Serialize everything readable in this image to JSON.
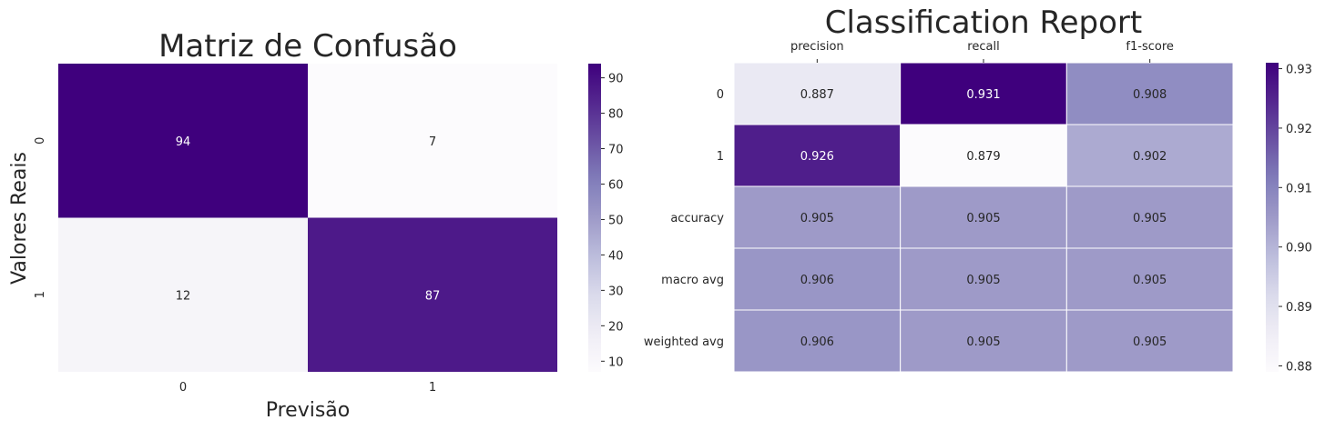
{
  "chart_data": [
    {
      "type": "heatmap",
      "title": "Matriz de Confusão",
      "xlabel": "Previsão",
      "ylabel": "Valores Reais",
      "x_categories": [
        "0",
        "1"
      ],
      "y_categories": [
        "0",
        "1"
      ],
      "values": [
        [
          94,
          7
        ],
        [
          12,
          87
        ]
      ],
      "annotations": [
        [
          "94",
          "7"
        ],
        [
          "12",
          "87"
        ]
      ],
      "colormap": "Purples",
      "vmin": 7,
      "vmax": 94,
      "colorbar_ticks": [
        10,
        20,
        30,
        40,
        50,
        60,
        70,
        80,
        90
      ],
      "gridlines": false,
      "x_ticks_position": "bottom"
    },
    {
      "type": "heatmap",
      "title": "Classification Report",
      "xlabel": "",
      "ylabel": "",
      "x_categories": [
        "precision",
        "recall",
        "f1-score"
      ],
      "y_categories": [
        "0",
        "1",
        "accuracy",
        "macro avg",
        "weighted avg"
      ],
      "values": [
        [
          0.887,
          0.931,
          0.908
        ],
        [
          0.926,
          0.879,
          0.902
        ],
        [
          0.905,
          0.905,
          0.905
        ],
        [
          0.906,
          0.905,
          0.905
        ],
        [
          0.906,
          0.905,
          0.905
        ]
      ],
      "annotations": [
        [
          "0.887",
          "0.931",
          "0.908"
        ],
        [
          "0.926",
          "0.879",
          "0.902"
        ],
        [
          "0.905",
          "0.905",
          "0.905"
        ],
        [
          "0.906",
          "0.905",
          "0.905"
        ],
        [
          "0.906",
          "0.905",
          "0.905"
        ]
      ],
      "colormap": "Purples",
      "vmin": 0.879,
      "vmax": 0.931,
      "colorbar_ticks": [
        "0.88",
        "0.89",
        "0.90",
        "0.91",
        "0.92",
        "0.93"
      ],
      "gridlines": true,
      "x_ticks_position": "top"
    }
  ]
}
